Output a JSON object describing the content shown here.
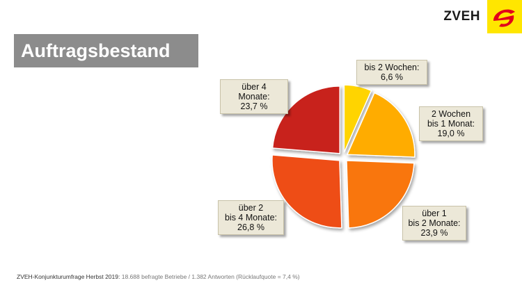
{
  "brand": {
    "name": "ZVEH",
    "logo_color": "#ffe600",
    "logo_mark_color": "#e2001a"
  },
  "header": {
    "title": "Auftragsbestand"
  },
  "chart_data": {
    "type": "pie",
    "title": "Auftragsbestand",
    "slices": [
      {
        "label": "bis 2 Wochen:\n6,6 %",
        "value": 6.6,
        "color": "#ffd400"
      },
      {
        "label": "2 Wochen\nbis 1 Monat:\n19,0 %",
        "value": 19.0,
        "color": "#ffac00"
      },
      {
        "label": "über 1\nbis 2 Monate:\n23,9 %",
        "value": 23.9,
        "color": "#f9760e"
      },
      {
        "label": "über 2\nbis 4 Monate:\n26,8 %",
        "value": 26.8,
        "color": "#ee4d14"
      },
      {
        "label": "über 4 Monate:\n23,7 %",
        "value": 23.7,
        "color": "#c8201b"
      }
    ],
    "start_angle_deg": 0,
    "direction": "clockwise",
    "exploded": true
  },
  "footer": {
    "source": "ZVEH-Konjunkturumfrage Herbst 2019:",
    "details": "18.688 befragte Betriebe / 1.382 Antworten (Rücklaufquote = 7,4 %)"
  }
}
